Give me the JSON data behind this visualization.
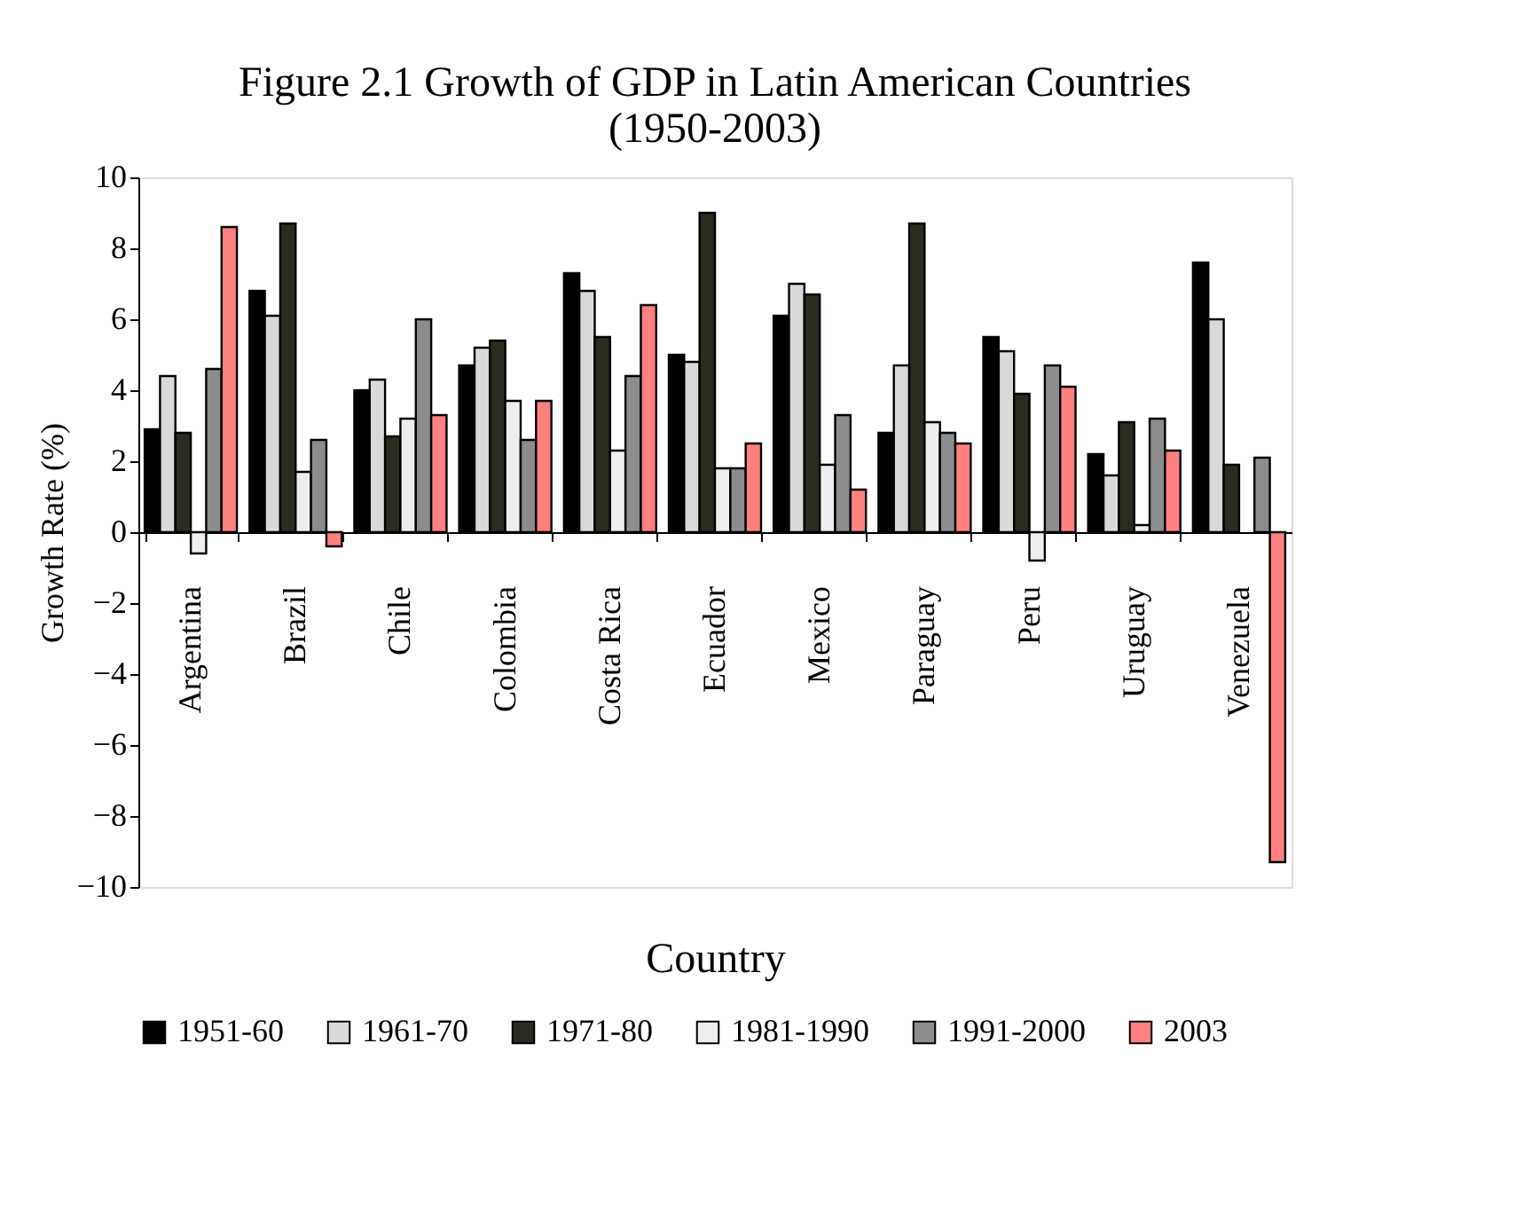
{
  "chart_data": {
    "type": "bar",
    "title": [
      "Figure 2.1  Growth of GDP in Latin American Countries",
      "(1950-2003)"
    ],
    "xlabel": "Country",
    "ylabel": "Growth Rate (%)",
    "categories": [
      "Argentina",
      "Brazil",
      "Chile",
      "Colombia",
      "Costa Rica",
      "Ecuador",
      "Mexico",
      "Paraguay",
      "Peru",
      "Uruguay",
      "Venezuela"
    ],
    "series": [
      {
        "name": "1951-60",
        "color": "#000000",
        "values": [
          2.9,
          6.8,
          4.0,
          4.7,
          7.3,
          5.0,
          6.1,
          2.8,
          5.5,
          2.2,
          7.6
        ]
      },
      {
        "name": "1961-70",
        "color": "#d9d9d9",
        "values": [
          4.4,
          6.1,
          4.3,
          5.2,
          6.8,
          4.8,
          7.0,
          4.7,
          5.1,
          1.6,
          6.0
        ]
      },
      {
        "name": "1971-80",
        "color": "#2b2b1f",
        "values": [
          2.8,
          8.7,
          2.7,
          5.4,
          5.5,
          9.0,
          6.7,
          8.7,
          3.9,
          3.1,
          1.9
        ]
      },
      {
        "name": "1981-1990",
        "color": "#eeeeee",
        "values": [
          -0.6,
          1.7,
          3.2,
          3.7,
          2.3,
          1.8,
          1.9,
          3.1,
          -0.8,
          0.2,
          null
        ]
      },
      {
        "name": "1991-2000",
        "color": "#8c8c8c",
        "values": [
          4.6,
          2.6,
          6.0,
          2.6,
          4.4,
          1.8,
          3.3,
          2.8,
          4.7,
          3.2,
          2.1
        ]
      },
      {
        "name": "2003",
        "color": "#ff8080",
        "values": [
          8.6,
          -0.4,
          3.3,
          3.7,
          6.4,
          2.5,
          1.2,
          2.5,
          4.1,
          2.3,
          -9.3
        ]
      }
    ],
    "ylim": [
      -10,
      10
    ],
    "yticks": [
      -10,
      -8,
      -6,
      -4,
      -2,
      0,
      2,
      4,
      6,
      8,
      10
    ],
    "grid": false,
    "legend": "bottom"
  }
}
